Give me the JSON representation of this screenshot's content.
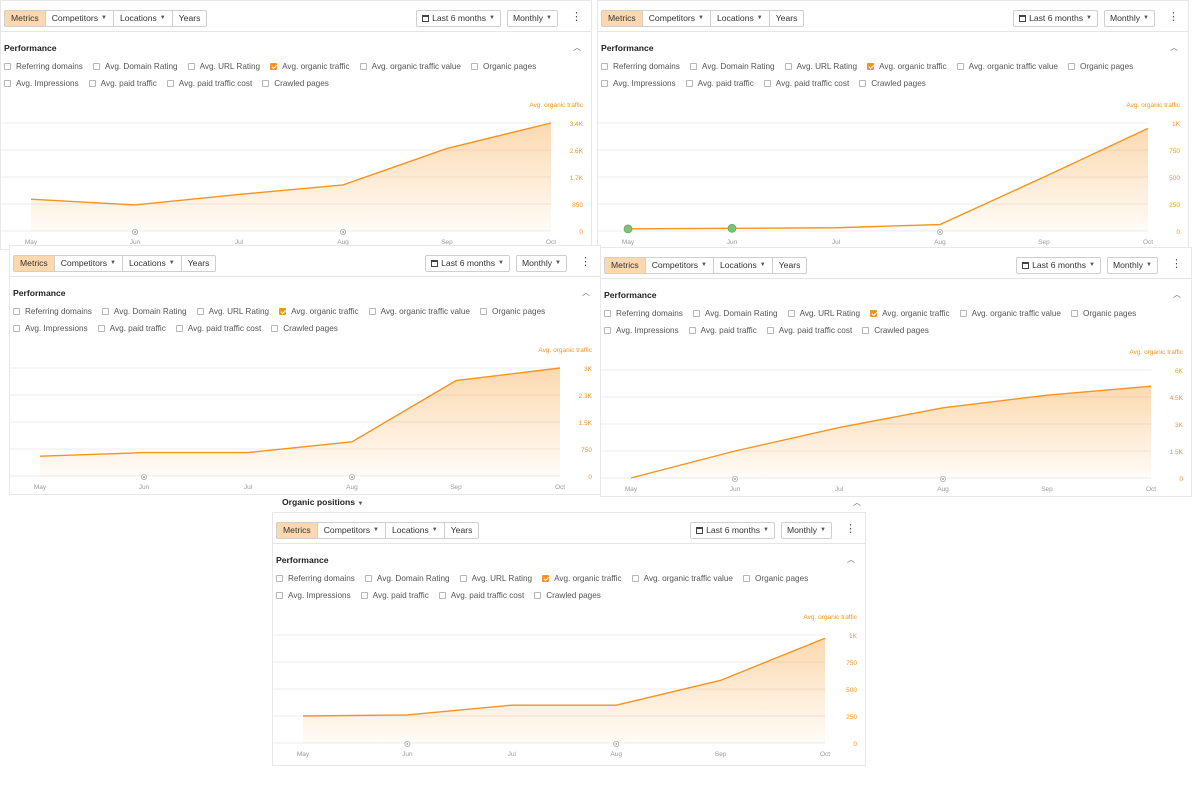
{
  "toolbar": {
    "tabs": [
      "Metrics",
      "Competitors",
      "Locations",
      "Years"
    ],
    "date_range": "Last 6 months",
    "interval": "Monthly"
  },
  "performance": {
    "title": "Performance",
    "metrics_row1": [
      "Referring domains",
      "Avg. Domain Rating",
      "Avg. URL Rating",
      "Avg. organic traffic",
      "Avg. organic traffic value",
      "Organic pages"
    ],
    "metrics_row2": [
      "Avg. Impressions",
      "Avg. paid traffic",
      "Avg. paid traffic cost",
      "Crawled pages"
    ],
    "checked_metric": "Avg. organic traffic"
  },
  "organic_positions_label": "Organic positions",
  "colors": {
    "accent": "#f5931f",
    "active_tab": "#fbd8ae",
    "marker": "#7ac47a"
  },
  "chart_data": [
    {
      "type": "area",
      "series_label": "Avg. organic traffic",
      "x": [
        "May",
        "Jun",
        "Jul",
        "Aug",
        "Sep",
        "Oct"
      ],
      "y_ticks": [
        "3.4K",
        "2.6K",
        "1.7K",
        "850",
        "0"
      ],
      "y_max": 3.4,
      "values": [
        1.0,
        0.82,
        1.15,
        1.45,
        2.6,
        3.4
      ],
      "markers": [
        "Jun",
        "Aug"
      ]
    },
    {
      "type": "area",
      "series_label": "Avg. organic traffic",
      "x": [
        "May",
        "Jun",
        "Jul",
        "Aug",
        "Sep",
        "Oct"
      ],
      "y_ticks": [
        "1K",
        "750",
        "500",
        "250",
        "0"
      ],
      "y_max": 1.0,
      "values": [
        0.02,
        0.025,
        0.03,
        0.06,
        0.5,
        0.95
      ],
      "markers": [
        "Aug"
      ],
      "highlight_markers": [
        "May",
        "Jun"
      ]
    },
    {
      "type": "area",
      "series_label": "Avg. organic traffic",
      "x": [
        "May",
        "Jun",
        "Jul",
        "Aug",
        "Sep",
        "Oct"
      ],
      "y_ticks": [
        "3K",
        "2.3K",
        "1.5K",
        "750",
        "0"
      ],
      "y_max": 3.0,
      "values": [
        0.55,
        0.65,
        0.65,
        0.95,
        2.65,
        3.0
      ],
      "markers": [
        "Jun",
        "Aug"
      ]
    },
    {
      "type": "area",
      "series_label": "Avg. organic traffic",
      "x": [
        "May",
        "Jun",
        "Jul",
        "Aug",
        "Sep",
        "Oct"
      ],
      "y_ticks": [
        "6K",
        "4.5K",
        "3K",
        "1.5K",
        "0"
      ],
      "y_max": 6.0,
      "values": [
        0.0,
        1.5,
        2.8,
        3.9,
        4.6,
        5.1
      ],
      "markers": [
        "Jun",
        "Aug"
      ]
    },
    {
      "type": "area",
      "series_label": "Avg. organic traffic",
      "x": [
        "May",
        "Jun",
        "Jul",
        "Aug",
        "Sep",
        "Oct"
      ],
      "y_ticks": [
        "1K",
        "750",
        "500",
        "250",
        "0"
      ],
      "y_max": 1.0,
      "values": [
        0.25,
        0.26,
        0.35,
        0.35,
        0.58,
        0.97
      ],
      "markers": [
        "Jun",
        "Aug"
      ]
    }
  ]
}
